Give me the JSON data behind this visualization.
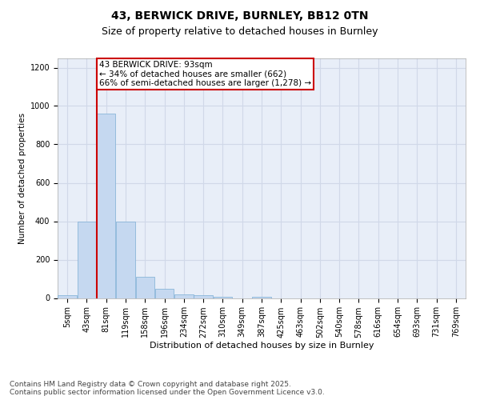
{
  "title_line1": "43, BERWICK DRIVE, BURNLEY, BB12 0TN",
  "title_line2": "Size of property relative to detached houses in Burnley",
  "xlabel": "Distribution of detached houses by size in Burnley",
  "ylabel": "Number of detached properties",
  "categories": [
    "5sqm",
    "43sqm",
    "81sqm",
    "119sqm",
    "158sqm",
    "196sqm",
    "234sqm",
    "272sqm",
    "310sqm",
    "349sqm",
    "387sqm",
    "425sqm",
    "463sqm",
    "502sqm",
    "540sqm",
    "578sqm",
    "616sqm",
    "654sqm",
    "693sqm",
    "731sqm",
    "769sqm"
  ],
  "bar_values": [
    15,
    400,
    960,
    400,
    110,
    50,
    20,
    15,
    5,
    0,
    5,
    0,
    0,
    0,
    0,
    0,
    0,
    0,
    0,
    0,
    0
  ],
  "bar_color": "#c5d8f0",
  "bar_edge_color": "#7badd4",
  "grid_color": "#d0d8e8",
  "background_color": "#e8eef8",
  "vline_color": "#cc0000",
  "vline_position": 1.5,
  "annotation_text": "43 BERWICK DRIVE: 93sqm\n← 34% of detached houses are smaller (662)\n66% of semi-detached houses are larger (1,278) →",
  "annotation_box_edgecolor": "#cc0000",
  "ylim": [
    0,
    1250
  ],
  "yticks": [
    0,
    200,
    400,
    600,
    800,
    1000,
    1200
  ],
  "footer_text": "Contains HM Land Registry data © Crown copyright and database right 2025.\nContains public sector information licensed under the Open Government Licence v3.0.",
  "title_fontsize": 10,
  "subtitle_fontsize": 9,
  "annotation_fontsize": 7.5,
  "axis_label_fontsize": 7.5,
  "tick_fontsize": 7,
  "footer_fontsize": 6.5
}
